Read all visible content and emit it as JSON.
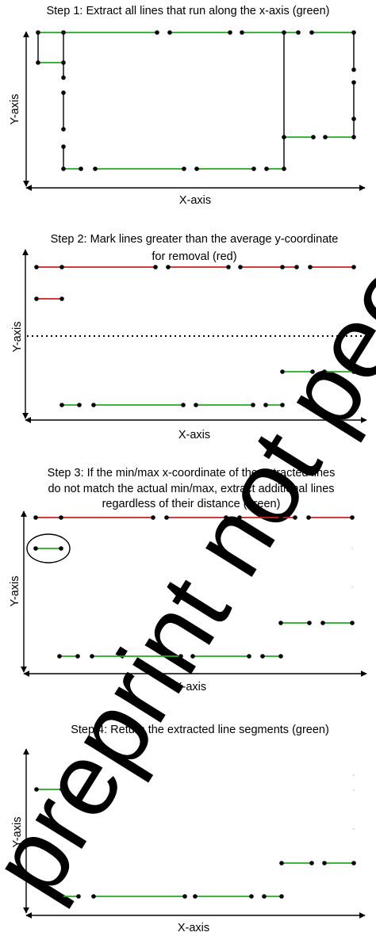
{
  "watermark": "preprint not peer reviewed",
  "colors": {
    "green": "#22aa22",
    "red": "#cc2020",
    "black": "#000000",
    "watermark": "#e6e6e6"
  },
  "panels": [
    {
      "id": "step1",
      "title_lines": [
        "Step 1: Extract all lines that run along the x-axis (green)"
      ],
      "xlabel": "X-axis",
      "ylabel": "Y-axis"
    },
    {
      "id": "step2",
      "title_lines": [
        "Step 2: Mark lines greater than the average y-coordinate",
        "for removal (red)"
      ],
      "xlabel": "X-axis",
      "ylabel": "Y-axis"
    },
    {
      "id": "step3",
      "title_lines": [
        "Step 3: If the min/max x-coordinate of the extracted lines",
        "do not match the actual min/max, extract additional lines",
        "regardless of their distance (green)"
      ],
      "xlabel": "X-axis",
      "ylabel": "Y-axis"
    },
    {
      "id": "step4",
      "title_lines": [
        "Step 4: Return the extracted line segments (green)"
      ],
      "xlabel": "X-axis",
      "ylabel": "Y-axis"
    }
  ]
}
